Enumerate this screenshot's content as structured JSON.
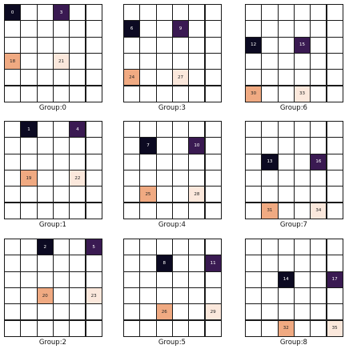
{
  "colors": {
    "dark": "#0c0a22",
    "purple": "#3a1a52",
    "orange": "#f0aa82",
    "cream": "#fbe8dc",
    "empty": "#ffffff",
    "grid_line": "#1a1a1a"
  },
  "panels": [
    {
      "label": "Group:0",
      "cells": [
        {
          "row": 0,
          "col": 0,
          "value": "0",
          "color": "dark"
        },
        {
          "row": 0,
          "col": 3,
          "value": "3",
          "color": "purple"
        },
        {
          "row": 3,
          "col": 0,
          "value": "18",
          "color": "orange"
        },
        {
          "row": 3,
          "col": 3,
          "value": "21",
          "color": "cream"
        }
      ]
    },
    {
      "label": "Group:3",
      "cells": [
        {
          "row": 1,
          "col": 0,
          "value": "6",
          "color": "dark"
        },
        {
          "row": 1,
          "col": 3,
          "value": "9",
          "color": "purple"
        },
        {
          "row": 4,
          "col": 0,
          "value": "24",
          "color": "orange"
        },
        {
          "row": 4,
          "col": 3,
          "value": "27",
          "color": "cream"
        }
      ]
    },
    {
      "label": "Group:6",
      "cells": [
        {
          "row": 2,
          "col": 0,
          "value": "12",
          "color": "dark"
        },
        {
          "row": 2,
          "col": 3,
          "value": "15",
          "color": "purple"
        },
        {
          "row": 5,
          "col": 0,
          "value": "30",
          "color": "orange"
        },
        {
          "row": 5,
          "col": 3,
          "value": "33",
          "color": "cream"
        }
      ]
    },
    {
      "label": "Group:1",
      "cells": [
        {
          "row": 0,
          "col": 1,
          "value": "1",
          "color": "dark"
        },
        {
          "row": 0,
          "col": 4,
          "value": "4",
          "color": "purple"
        },
        {
          "row": 3,
          "col": 1,
          "value": "19",
          "color": "orange"
        },
        {
          "row": 3,
          "col": 4,
          "value": "22",
          "color": "cream"
        }
      ]
    },
    {
      "label": "Group:4",
      "cells": [
        {
          "row": 1,
          "col": 1,
          "value": "7",
          "color": "dark"
        },
        {
          "row": 1,
          "col": 4,
          "value": "10",
          "color": "purple"
        },
        {
          "row": 4,
          "col": 1,
          "value": "25",
          "color": "orange"
        },
        {
          "row": 4,
          "col": 4,
          "value": "28",
          "color": "cream"
        }
      ]
    },
    {
      "label": "Group:7",
      "cells": [
        {
          "row": 2,
          "col": 1,
          "value": "13",
          "color": "dark"
        },
        {
          "row": 2,
          "col": 4,
          "value": "16",
          "color": "purple"
        },
        {
          "row": 5,
          "col": 1,
          "value": "31",
          "color": "orange"
        },
        {
          "row": 5,
          "col": 4,
          "value": "34",
          "color": "cream"
        }
      ]
    },
    {
      "label": "Group:2",
      "cells": [
        {
          "row": 0,
          "col": 2,
          "value": "2",
          "color": "dark"
        },
        {
          "row": 0,
          "col": 5,
          "value": "5",
          "color": "purple"
        },
        {
          "row": 3,
          "col": 2,
          "value": "20",
          "color": "orange"
        },
        {
          "row": 3,
          "col": 5,
          "value": "23",
          "color": "cream"
        }
      ]
    },
    {
      "label": "Group:5",
      "cells": [
        {
          "row": 1,
          "col": 2,
          "value": "8",
          "color": "dark"
        },
        {
          "row": 1,
          "col": 5,
          "value": "11",
          "color": "purple"
        },
        {
          "row": 4,
          "col": 2,
          "value": "26",
          "color": "orange"
        },
        {
          "row": 4,
          "col": 5,
          "value": "29",
          "color": "cream"
        }
      ]
    },
    {
      "label": "Group:8",
      "cells": [
        {
          "row": 2,
          "col": 2,
          "value": "14",
          "color": "dark"
        },
        {
          "row": 2,
          "col": 5,
          "value": "17",
          "color": "purple"
        },
        {
          "row": 5,
          "col": 2,
          "value": "32",
          "color": "orange"
        },
        {
          "row": 5,
          "col": 5,
          "value": "35",
          "color": "cream"
        }
      ]
    }
  ]
}
